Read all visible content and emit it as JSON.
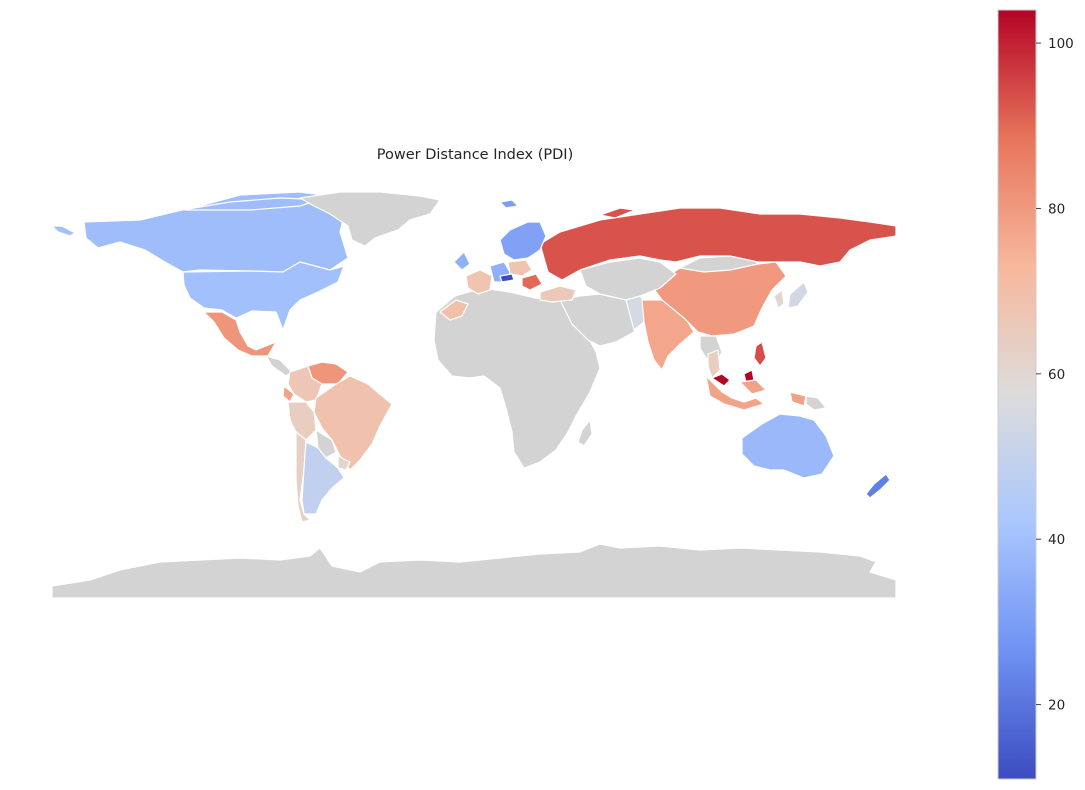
{
  "title": "Power Distance Index (PDI)",
  "colormap": "coolwarm",
  "colorbar": {
    "min": 11,
    "max": 104,
    "ticks": [
      20,
      40,
      60,
      80,
      100
    ],
    "tick_labels": [
      "20",
      "40",
      "60",
      "80",
      "100"
    ],
    "colors": [
      "#3b4cc0",
      "#6f92f3",
      "#aac7fd",
      "#dddcdc",
      "#f7b89c",
      "#e7745b",
      "#b40426"
    ]
  },
  "no_data_color": "#d3d3d3",
  "border_color": "#ffffff",
  "regions": [
    {
      "name": "Canada",
      "pdi": 39
    },
    {
      "name": "United States",
      "pdi": 40
    },
    {
      "name": "Alaska",
      "pdi": 40
    },
    {
      "name": "Greenland",
      "pdi": null
    },
    {
      "name": "Mexico",
      "pdi": 81
    },
    {
      "name": "Central America",
      "pdi": null
    },
    {
      "name": "Venezuela",
      "pdi": 81
    },
    {
      "name": "Colombia",
      "pdi": 67
    },
    {
      "name": "Ecuador",
      "pdi": 78
    },
    {
      "name": "Peru",
      "pdi": 64
    },
    {
      "name": "Brazil",
      "pdi": 69
    },
    {
      "name": "Bolivia",
      "pdi": null
    },
    {
      "name": "Chile",
      "pdi": 63
    },
    {
      "name": "Argentina",
      "pdi": 49
    },
    {
      "name": "Uruguay",
      "pdi": 61
    },
    {
      "name": "Africa",
      "pdi": null
    },
    {
      "name": "Morocco",
      "pdi": 70
    },
    {
      "name": "Madagascar",
      "pdi": null
    },
    {
      "name": "Middle East",
      "pdi": null
    },
    {
      "name": "Pakistan",
      "pdi": 55
    },
    {
      "name": "India",
      "pdi": 77
    },
    {
      "name": "China",
      "pdi": 80
    },
    {
      "name": "Mongolia",
      "pdi": null
    },
    {
      "name": "Central Asia",
      "pdi": null
    },
    {
      "name": "Russia",
      "pdi": 93
    },
    {
      "name": "Scandinavia",
      "pdi": 31
    },
    {
      "name": "Iceland",
      "pdi": 30
    },
    {
      "name": "Britain",
      "pdi": 35
    },
    {
      "name": "France",
      "pdi": 68
    },
    {
      "name": "Germany",
      "pdi": 35
    },
    {
      "name": "Poland",
      "pdi": 68
    },
    {
      "name": "Austria",
      "pdi": 11
    },
    {
      "name": "Romania",
      "pdi": 90
    },
    {
      "name": "Turkey",
      "pdi": 66
    },
    {
      "name": "Japan",
      "pdi": 54
    },
    {
      "name": "Korea",
      "pdi": 60
    },
    {
      "name": "Southeast Asia",
      "pdi": null
    },
    {
      "name": "Thailand",
      "pdi": 64
    },
    {
      "name": "Philippines",
      "pdi": 94
    },
    {
      "name": "Malaysia",
      "pdi": 104
    },
    {
      "name": "Indonesia",
      "pdi": 78
    },
    {
      "name": "Papua New Guinea",
      "pdi": null
    },
    {
      "name": "Australia",
      "pdi": 38
    },
    {
      "name": "New Zealand",
      "pdi": 22
    },
    {
      "name": "Antarctica",
      "pdi": null
    }
  ]
}
